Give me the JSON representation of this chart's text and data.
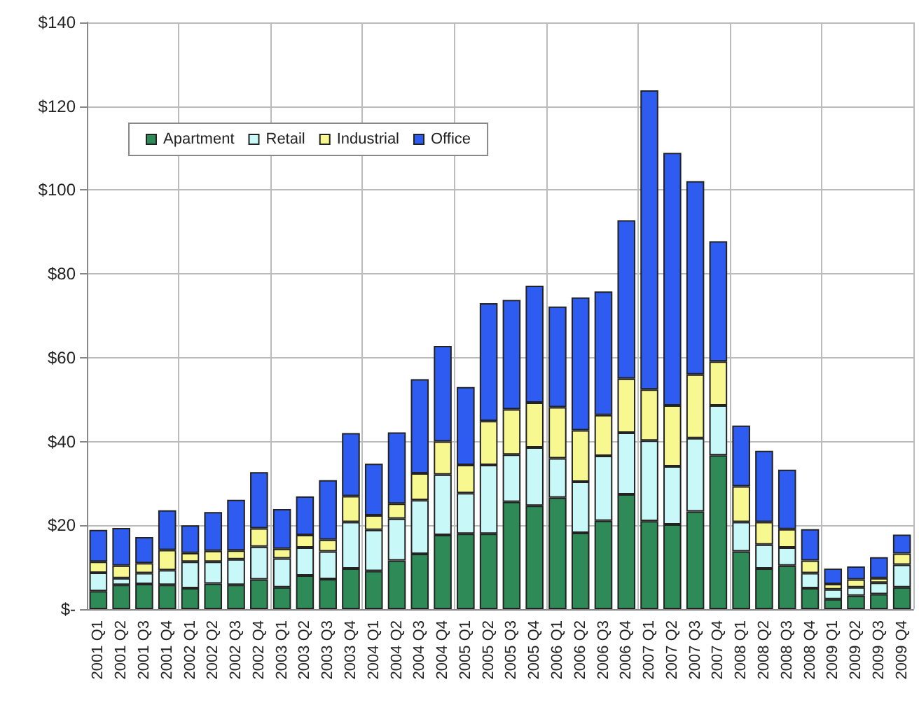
{
  "chart_data": {
    "type": "bar",
    "stacked": true,
    "categories": [
      "2001 Q1",
      "2001 Q2",
      "2001 Q3",
      "2001 Q4",
      "2002 Q1",
      "2002 Q2",
      "2002 Q3",
      "2002 Q4",
      "2003 Q1",
      "2003 Q2",
      "2003 Q3",
      "2003 Q4",
      "2004 Q1",
      "2004 Q2",
      "2004 Q3",
      "2004 Q4",
      "2005 Q1",
      "2005 Q2",
      "2005 Q3",
      "2005 Q4",
      "2006 Q1",
      "2006 Q2",
      "2006 Q3",
      "2006 Q4",
      "2007 Q1",
      "2007 Q2",
      "2007 Q3",
      "2007 Q4",
      "2008 Q1",
      "2008 Q2",
      "2008 Q3",
      "2008 Q4",
      "2009 Q1",
      "2009 Q2",
      "2009 Q3",
      "2009 Q4"
    ],
    "series": [
      {
        "name": "Apartment",
        "color": "#2e8b57",
        "values": [
          4.3,
          5.8,
          6,
          5.8,
          5,
          6.1,
          5.8,
          7.1,
          5.2,
          8,
          7.2,
          9.7,
          9.1,
          11.6,
          13.2,
          17.7,
          18,
          18,
          25.6,
          24.7,
          26.6,
          18.2,
          21.1,
          27.4,
          21,
          20.2,
          23.3,
          36.7,
          13.8,
          9.7,
          10.4,
          5,
          2.4,
          3.2,
          3.6,
          5.2
        ]
      },
      {
        "name": "Retail",
        "color": "#c8f8f8",
        "values": [
          4.4,
          1.6,
          2.6,
          3.5,
          6.3,
          5.2,
          6.1,
          7.8,
          6.9,
          6.7,
          6.6,
          11.1,
          9.8,
          10,
          12.8,
          14.4,
          9.7,
          16.4,
          11.3,
          13.9,
          9.4,
          12.2,
          15.5,
          14.7,
          19.2,
          13.9,
          17.5,
          11.9,
          7,
          5.7,
          4.3,
          3.6,
          2.3,
          2,
          2.7,
          5.4
        ]
      },
      {
        "name": "Industrial",
        "color": "#f8f890",
        "values": [
          2.6,
          3,
          2.4,
          4.8,
          2.1,
          2.6,
          2.1,
          4.4,
          2.3,
          3,
          2.8,
          6.2,
          3.5,
          3.6,
          6.4,
          7.9,
          6.7,
          10.5,
          10.8,
          10.7,
          12.2,
          12.3,
          9.7,
          12.9,
          12.2,
          14.5,
          15.2,
          10.5,
          8.5,
          5.4,
          4.4,
          3,
          1.3,
          1.9,
          1.1,
          2.7
        ]
      },
      {
        "name": "Office",
        "color": "#2e5cf0",
        "values": [
          7.6,
          9,
          6.2,
          9.5,
          6.6,
          9.3,
          12.1,
          13.4,
          9.5,
          9.2,
          14.2,
          15,
          12.3,
          17,
          22.5,
          22.8,
          18.6,
          28.1,
          26.1,
          27.9,
          24,
          31.7,
          29.5,
          37.8,
          71.4,
          60.3,
          46.1,
          28.7,
          14.5,
          17,
          14.2,
          7.5,
          3.7,
          3.1,
          5,
          4.5
        ]
      }
    ],
    "ylim": [
      0,
      140
    ],
    "yticks": [
      {
        "value": 0,
        "label": "$-"
      },
      {
        "value": 20,
        "label": "$20"
      },
      {
        "value": 40,
        "label": "$40"
      },
      {
        "value": 60,
        "label": "$60"
      },
      {
        "value": 80,
        "label": "$80"
      },
      {
        "value": 100,
        "label": "$100"
      },
      {
        "value": 120,
        "label": "$120"
      },
      {
        "value": 140,
        "label": "$140"
      }
    ],
    "grid": true,
    "legend": "top left"
  }
}
